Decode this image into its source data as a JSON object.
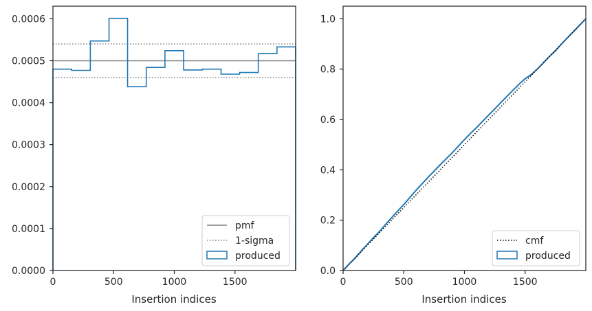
{
  "chart_data": [
    {
      "type": "histogram",
      "xlabel": "Insertion indices",
      "ylabel": "",
      "xlim": [
        0,
        2000
      ],
      "ylim": [
        0,
        0.00063
      ],
      "xticks": [
        0,
        500,
        1000,
        1500
      ],
      "yticks": [
        0.0,
        0.0001,
        0.0002,
        0.0003,
        0.0004,
        0.0005,
        0.0006
      ],
      "xtick_labels": [
        "0",
        "500",
        "1000",
        "1500"
      ],
      "ytick_labels": [
        "0.0000",
        "0.0001",
        "0.0002",
        "0.0003",
        "0.0004",
        "0.0005",
        "0.0006"
      ],
      "bin_edges": [
        0,
        154,
        308,
        462,
        615,
        769,
        923,
        1077,
        1231,
        1385,
        1538,
        1692,
        1846,
        2000
      ],
      "series": [
        {
          "name": "produced",
          "style": "step",
          "color": "#1f77b4",
          "values": [
            0.00048,
            0.000477,
            0.000547,
            0.000601,
            0.000438,
            0.000484,
            0.000524,
            0.000478,
            0.00048,
            0.000468,
            0.000472,
            0.000517,
            0.000533
          ]
        },
        {
          "name": "pmf",
          "style": "solid",
          "color": "#808080",
          "y": 0.0005
        },
        {
          "name": "1-sigma",
          "style": "dotted",
          "color": "#808080",
          "y": [
            0.00046,
            0.00054
          ]
        }
      ],
      "legend": {
        "placement": "lower right",
        "entries": [
          "pmf",
          "1-sigma",
          "produced"
        ]
      },
      "grid": false
    },
    {
      "type": "line",
      "xlabel": "Insertion indices",
      "ylabel": "",
      "xlim": [
        0,
        2000
      ],
      "ylim": [
        0,
        1.05
      ],
      "xticks": [
        0,
        500,
        1000,
        1500
      ],
      "yticks": [
        0.0,
        0.2,
        0.4,
        0.6,
        0.8,
        1.0
      ],
      "xtick_labels": [
        "0",
        "500",
        "1000",
        "1500"
      ],
      "ytick_labels": [
        "0.0",
        "0.2",
        "0.4",
        "0.6",
        "0.8",
        "1.0"
      ],
      "series": [
        {
          "name": "cmf",
          "style": "dotted",
          "color": "#000000",
          "x": [
            0,
            2000
          ],
          "y": [
            0,
            1.0
          ]
        },
        {
          "name": "produced",
          "style": "step",
          "color": "#1f77b4",
          "x": [
            0,
            50,
            100,
            150,
            200,
            250,
            300,
            350,
            400,
            450,
            500,
            550,
            600,
            650,
            700,
            750,
            800,
            850,
            900,
            950,
            1000,
            1050,
            1100,
            1150,
            1200,
            1250,
            1300,
            1350,
            1400,
            1450,
            1500,
            1550,
            1600,
            1650,
            1700,
            1750,
            1800,
            1850,
            1900,
            1950,
            2000
          ],
          "y": [
            0,
            0.026,
            0.05,
            0.078,
            0.104,
            0.13,
            0.155,
            0.183,
            0.21,
            0.236,
            0.262,
            0.29,
            0.318,
            0.344,
            0.37,
            0.395,
            0.42,
            0.444,
            0.468,
            0.494,
            0.52,
            0.545,
            0.568,
            0.593,
            0.618,
            0.642,
            0.667,
            0.692,
            0.716,
            0.74,
            0.762,
            0.778,
            0.8,
            0.825,
            0.85,
            0.873,
            0.9,
            0.925,
            0.95,
            0.975,
            1.0
          ]
        }
      ],
      "legend": {
        "placement": "lower right",
        "entries": [
          "cmf",
          "produced"
        ]
      },
      "grid": false
    }
  ]
}
